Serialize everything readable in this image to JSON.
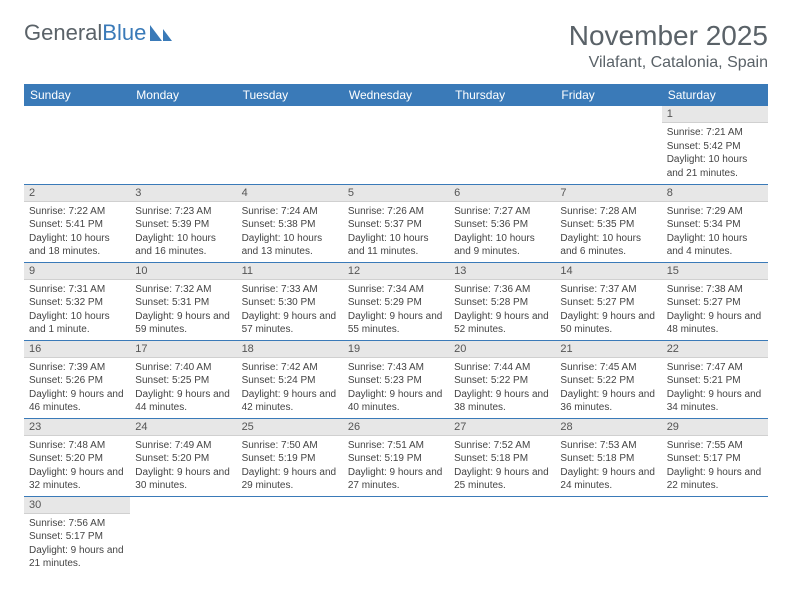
{
  "brand": {
    "part1": "General",
    "part2": "Blue"
  },
  "title": "November 2025",
  "location": "Vilafant, Catalonia, Spain",
  "colors": {
    "header_bg": "#3a7ab8",
    "header_text": "#ffffff",
    "daynum_bg": "#e7e7e7",
    "row_border": "#3a7ab8",
    "text": "#444444",
    "title_text": "#5a6268"
  },
  "fonts": {
    "title_size": 28,
    "location_size": 16,
    "header_size": 12,
    "body_size": 10
  },
  "dayNames": [
    "Sunday",
    "Monday",
    "Tuesday",
    "Wednesday",
    "Thursday",
    "Friday",
    "Saturday"
  ],
  "weeks": [
    [
      null,
      null,
      null,
      null,
      null,
      null,
      {
        "n": "1",
        "sr": "Sunrise: 7:21 AM",
        "ss": "Sunset: 5:42 PM",
        "dl": "Daylight: 10 hours and 21 minutes."
      }
    ],
    [
      {
        "n": "2",
        "sr": "Sunrise: 7:22 AM",
        "ss": "Sunset: 5:41 PM",
        "dl": "Daylight: 10 hours and 18 minutes."
      },
      {
        "n": "3",
        "sr": "Sunrise: 7:23 AM",
        "ss": "Sunset: 5:39 PM",
        "dl": "Daylight: 10 hours and 16 minutes."
      },
      {
        "n": "4",
        "sr": "Sunrise: 7:24 AM",
        "ss": "Sunset: 5:38 PM",
        "dl": "Daylight: 10 hours and 13 minutes."
      },
      {
        "n": "5",
        "sr": "Sunrise: 7:26 AM",
        "ss": "Sunset: 5:37 PM",
        "dl": "Daylight: 10 hours and 11 minutes."
      },
      {
        "n": "6",
        "sr": "Sunrise: 7:27 AM",
        "ss": "Sunset: 5:36 PM",
        "dl": "Daylight: 10 hours and 9 minutes."
      },
      {
        "n": "7",
        "sr": "Sunrise: 7:28 AM",
        "ss": "Sunset: 5:35 PM",
        "dl": "Daylight: 10 hours and 6 minutes."
      },
      {
        "n": "8",
        "sr": "Sunrise: 7:29 AM",
        "ss": "Sunset: 5:34 PM",
        "dl": "Daylight: 10 hours and 4 minutes."
      }
    ],
    [
      {
        "n": "9",
        "sr": "Sunrise: 7:31 AM",
        "ss": "Sunset: 5:32 PM",
        "dl": "Daylight: 10 hours and 1 minute."
      },
      {
        "n": "10",
        "sr": "Sunrise: 7:32 AM",
        "ss": "Sunset: 5:31 PM",
        "dl": "Daylight: 9 hours and 59 minutes."
      },
      {
        "n": "11",
        "sr": "Sunrise: 7:33 AM",
        "ss": "Sunset: 5:30 PM",
        "dl": "Daylight: 9 hours and 57 minutes."
      },
      {
        "n": "12",
        "sr": "Sunrise: 7:34 AM",
        "ss": "Sunset: 5:29 PM",
        "dl": "Daylight: 9 hours and 55 minutes."
      },
      {
        "n": "13",
        "sr": "Sunrise: 7:36 AM",
        "ss": "Sunset: 5:28 PM",
        "dl": "Daylight: 9 hours and 52 minutes."
      },
      {
        "n": "14",
        "sr": "Sunrise: 7:37 AM",
        "ss": "Sunset: 5:27 PM",
        "dl": "Daylight: 9 hours and 50 minutes."
      },
      {
        "n": "15",
        "sr": "Sunrise: 7:38 AM",
        "ss": "Sunset: 5:27 PM",
        "dl": "Daylight: 9 hours and 48 minutes."
      }
    ],
    [
      {
        "n": "16",
        "sr": "Sunrise: 7:39 AM",
        "ss": "Sunset: 5:26 PM",
        "dl": "Daylight: 9 hours and 46 minutes."
      },
      {
        "n": "17",
        "sr": "Sunrise: 7:40 AM",
        "ss": "Sunset: 5:25 PM",
        "dl": "Daylight: 9 hours and 44 minutes."
      },
      {
        "n": "18",
        "sr": "Sunrise: 7:42 AM",
        "ss": "Sunset: 5:24 PM",
        "dl": "Daylight: 9 hours and 42 minutes."
      },
      {
        "n": "19",
        "sr": "Sunrise: 7:43 AM",
        "ss": "Sunset: 5:23 PM",
        "dl": "Daylight: 9 hours and 40 minutes."
      },
      {
        "n": "20",
        "sr": "Sunrise: 7:44 AM",
        "ss": "Sunset: 5:22 PM",
        "dl": "Daylight: 9 hours and 38 minutes."
      },
      {
        "n": "21",
        "sr": "Sunrise: 7:45 AM",
        "ss": "Sunset: 5:22 PM",
        "dl": "Daylight: 9 hours and 36 minutes."
      },
      {
        "n": "22",
        "sr": "Sunrise: 7:47 AM",
        "ss": "Sunset: 5:21 PM",
        "dl": "Daylight: 9 hours and 34 minutes."
      }
    ],
    [
      {
        "n": "23",
        "sr": "Sunrise: 7:48 AM",
        "ss": "Sunset: 5:20 PM",
        "dl": "Daylight: 9 hours and 32 minutes."
      },
      {
        "n": "24",
        "sr": "Sunrise: 7:49 AM",
        "ss": "Sunset: 5:20 PM",
        "dl": "Daylight: 9 hours and 30 minutes."
      },
      {
        "n": "25",
        "sr": "Sunrise: 7:50 AM",
        "ss": "Sunset: 5:19 PM",
        "dl": "Daylight: 9 hours and 29 minutes."
      },
      {
        "n": "26",
        "sr": "Sunrise: 7:51 AM",
        "ss": "Sunset: 5:19 PM",
        "dl": "Daylight: 9 hours and 27 minutes."
      },
      {
        "n": "27",
        "sr": "Sunrise: 7:52 AM",
        "ss": "Sunset: 5:18 PM",
        "dl": "Daylight: 9 hours and 25 minutes."
      },
      {
        "n": "28",
        "sr": "Sunrise: 7:53 AM",
        "ss": "Sunset: 5:18 PM",
        "dl": "Daylight: 9 hours and 24 minutes."
      },
      {
        "n": "29",
        "sr": "Sunrise: 7:55 AM",
        "ss": "Sunset: 5:17 PM",
        "dl": "Daylight: 9 hours and 22 minutes."
      }
    ],
    [
      {
        "n": "30",
        "sr": "Sunrise: 7:56 AM",
        "ss": "Sunset: 5:17 PM",
        "dl": "Daylight: 9 hours and 21 minutes."
      },
      null,
      null,
      null,
      null,
      null,
      null
    ]
  ]
}
